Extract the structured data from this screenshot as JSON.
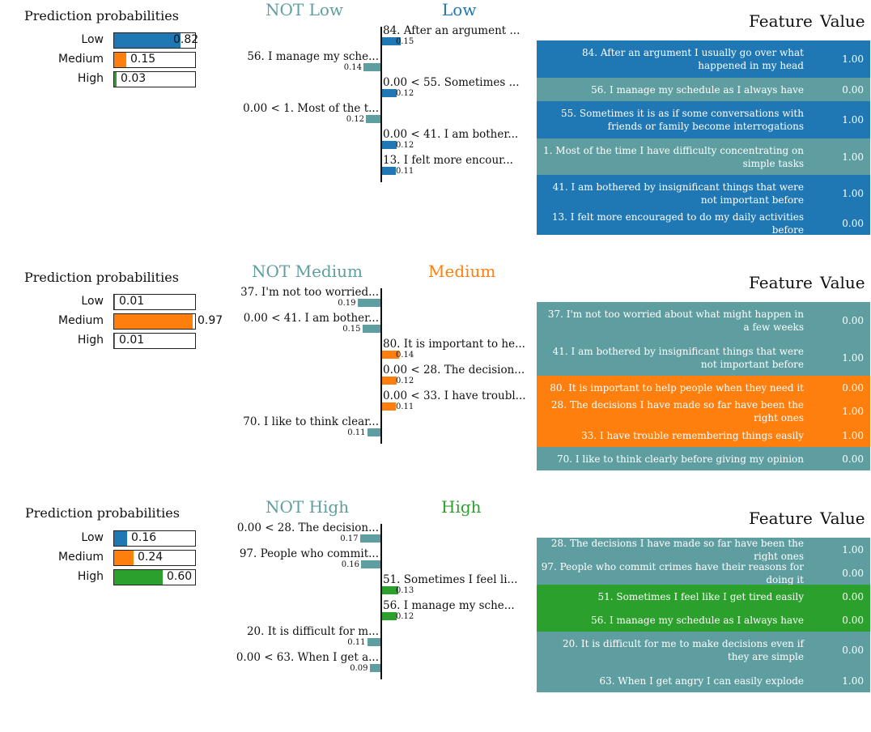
{
  "colors": {
    "low": "#1f77b4",
    "medium": "#ff7f0e",
    "high": "#2ca02c",
    "not": "#5f9ea0"
  },
  "chart_data": [
    {
      "type": "bar",
      "title": "Prediction probabilities",
      "probabilities": [
        {
          "label": "Low",
          "value": 0.82,
          "value_text": "0.82",
          "color": "#1f77b4"
        },
        {
          "label": "Medium",
          "value": 0.15,
          "value_text": "0.15",
          "color": "#ff7f0e"
        },
        {
          "label": "High",
          "value": 0.03,
          "value_text": "0.03",
          "color": "#2ca02c"
        }
      ],
      "not_class_label": "NOT Low",
      "class_label": "Low",
      "class_color": "#1f77b4",
      "features": [
        {
          "label": "84. After an argument ...",
          "weight": 0.15,
          "weight_text": "0.15",
          "side": "pos"
        },
        {
          "label": "56. I manage my sche...",
          "weight": 0.14,
          "weight_text": "0.14",
          "side": "neg"
        },
        {
          "label": "0.00 < 55. Sometimes ...",
          "weight": 0.12,
          "weight_text": "0.12",
          "side": "pos"
        },
        {
          "label": "0.00 < 1. Most of the t...",
          "weight": 0.12,
          "weight_text": "0.12",
          "side": "neg"
        },
        {
          "label": "0.00 < 41. I am bother...",
          "weight": 0.12,
          "weight_text": "0.12",
          "side": "pos"
        },
        {
          "label": "13. I felt more encour...",
          "weight": 0.11,
          "weight_text": "0.11",
          "side": "pos"
        }
      ],
      "table_headers": [
        "Feature",
        "Value"
      ],
      "table": [
        {
          "feature": "84. After an argument I usually go over what happened in my head",
          "value": "1.00",
          "side": "pos"
        },
        {
          "feature": "56. I manage my schedule as I always have",
          "value": "0.00",
          "side": "neg"
        },
        {
          "feature": "55. Sometimes it is as if some conversations with friends or family become interrogations",
          "value": "1.00",
          "side": "pos"
        },
        {
          "feature": "1. Most of the time I have difficulty concentrating on simple tasks",
          "value": "1.00",
          "side": "neg"
        },
        {
          "feature": "41. I am bothered by insignificant things that were not important before",
          "value": "1.00",
          "side": "pos"
        },
        {
          "feature": "13. I felt more encouraged to do my daily activities before",
          "value": "0.00",
          "side": "pos"
        }
      ]
    },
    {
      "type": "bar",
      "title": "Prediction probabilities",
      "probabilities": [
        {
          "label": "Low",
          "value": 0.01,
          "value_text": "0.01",
          "color": "#1f77b4"
        },
        {
          "label": "Medium",
          "value": 0.97,
          "value_text": "0.97",
          "color": "#ff7f0e"
        },
        {
          "label": "High",
          "value": 0.01,
          "value_text": "0.01",
          "color": "#2ca02c"
        }
      ],
      "not_class_label": "NOT Medium",
      "class_label": "Medium",
      "class_color": "#ff7f0e",
      "features": [
        {
          "label": "37. I'm not too worried...",
          "weight": 0.19,
          "weight_text": "0.19",
          "side": "neg"
        },
        {
          "label": "0.00 < 41. I am bother...",
          "weight": 0.15,
          "weight_text": "0.15",
          "side": "neg"
        },
        {
          "label": "80. It is important to he...",
          "weight": 0.14,
          "weight_text": "0.14",
          "side": "pos"
        },
        {
          "label": "0.00 < 28. The decision...",
          "weight": 0.12,
          "weight_text": "0.12",
          "side": "pos"
        },
        {
          "label": "0.00 < 33. I have troubl...",
          "weight": 0.11,
          "weight_text": "0.11",
          "side": "pos"
        },
        {
          "label": "70. I like to think clear...",
          "weight": 0.11,
          "weight_text": "0.11",
          "side": "neg"
        }
      ],
      "table_headers": [
        "Feature",
        "Value"
      ],
      "table": [
        {
          "feature": "37. I'm not too worried about what might happen in a few weeks",
          "value": "0.00",
          "side": "neg"
        },
        {
          "feature": "41. I am bothered by insignificant things that were not important before",
          "value": "1.00",
          "side": "neg"
        },
        {
          "feature": "80. It is important to help people when they need it",
          "value": "0.00",
          "side": "pos"
        },
        {
          "feature": "28. The decisions I have made so far have been the right ones",
          "value": "1.00",
          "side": "pos"
        },
        {
          "feature": "33. I have trouble remembering things easily",
          "value": "1.00",
          "side": "pos"
        },
        {
          "feature": "70. I like to think clearly before giving my opinion",
          "value": "0.00",
          "side": "neg"
        }
      ]
    },
    {
      "type": "bar",
      "title": "Prediction probabilities",
      "probabilities": [
        {
          "label": "Low",
          "value": 0.16,
          "value_text": "0.16",
          "color": "#1f77b4"
        },
        {
          "label": "Medium",
          "value": 0.24,
          "value_text": "0.24",
          "color": "#ff7f0e"
        },
        {
          "label": "High",
          "value": 0.6,
          "value_text": "0.60",
          "color": "#2ca02c"
        }
      ],
      "not_class_label": "NOT High",
      "class_label": "High",
      "class_color": "#2ca02c",
      "features": [
        {
          "label": "0.00 < 28. The decision...",
          "weight": 0.17,
          "weight_text": "0.17",
          "side": "neg"
        },
        {
          "label": "97. People who commit...",
          "weight": 0.16,
          "weight_text": "0.16",
          "side": "neg"
        },
        {
          "label": "51. Sometimes I feel li...",
          "weight": 0.13,
          "weight_text": "0.13",
          "side": "pos"
        },
        {
          "label": "56. I manage my sche...",
          "weight": 0.12,
          "weight_text": "0.12",
          "side": "pos"
        },
        {
          "label": "20. It is difficult for m...",
          "weight": 0.11,
          "weight_text": "0.11",
          "side": "neg"
        },
        {
          "label": "0.00 < 63. When I get a...",
          "weight": 0.09,
          "weight_text": "0.09",
          "side": "neg"
        }
      ],
      "table_headers": [
        "Feature",
        "Value"
      ],
      "table": [
        {
          "feature": "28. The decisions I have made so far have been the right ones",
          "value": "1.00",
          "side": "neg"
        },
        {
          "feature": "97. People who commit crimes have their reasons for doing it",
          "value": "0.00",
          "side": "neg"
        },
        {
          "feature": "51. Sometimes I feel like I get tired easily",
          "value": "0.00",
          "side": "pos"
        },
        {
          "feature": "56. I manage my schedule as I always have",
          "value": "0.00",
          "side": "pos"
        },
        {
          "feature": "20. It is difficult for me to make decisions even if they are simple",
          "value": "0.00",
          "side": "neg"
        },
        {
          "feature": "63. When I get angry I can easily explode",
          "value": "1.00",
          "side": "neg"
        }
      ]
    }
  ]
}
